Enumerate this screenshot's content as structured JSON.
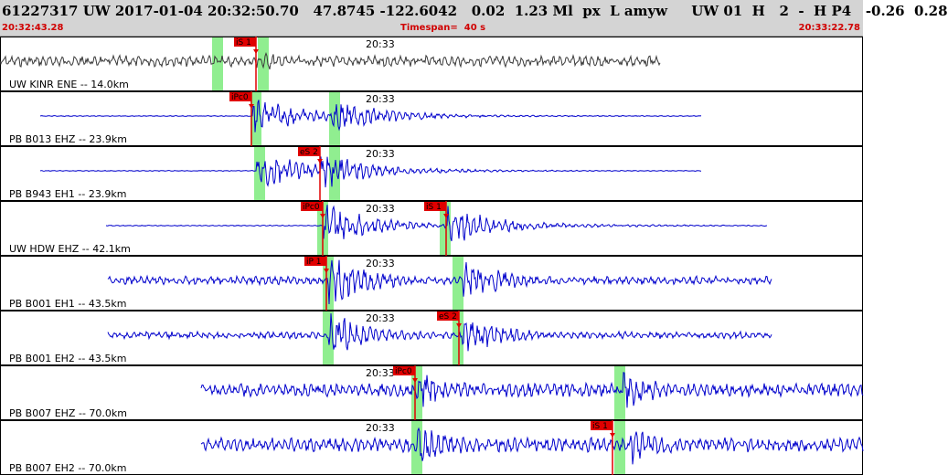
{
  "header": {
    "title": "61227317 UW 2017-01-04 20:32:50.70   47.8745 -122.6042   0.02  1.23 Ml  px  L amyw     UW 01  H   2  -  H P4   -0.26  0.28",
    "start_time": "20:32:43.28",
    "timespan": "Timespan=  40 s",
    "end_time": "20:33:22.78"
  },
  "colors": {
    "header_bg": "#d4d4d4",
    "trace_first": "#3a3a3a",
    "trace": "#0000cc",
    "pick_flag": "#e00000",
    "pick_window": "#90ee90",
    "time_text": "#d00000"
  },
  "panels": [
    {
      "channel": "UW KINR ENE -- 14.0km",
      "time_mark": "20:33",
      "color": "dark",
      "amp": 0.32,
      "noise": 0.55,
      "start": 0.0,
      "end": 0.765,
      "onsets": [
        0.297
      ],
      "windows": [
        0.252,
        0.305
      ],
      "picks": [
        {
          "label": "iS 1",
          "x": 0.297
        }
      ]
    },
    {
      "channel": "PB B013 EHZ -- 23.9km",
      "time_mark": "20:33",
      "color": "blue",
      "amp": 0.62,
      "noise": 0.02,
      "start": 0.047,
      "end": 0.813,
      "onsets": [
        0.293,
        0.385
      ],
      "windows": [
        0.297,
        0.388
      ],
      "picks": [
        {
          "label": "iPc0",
          "x": 0.291
        }
      ]
    },
    {
      "channel": "PB B943 EH1 -- 23.9km",
      "time_mark": "20:33",
      "color": "blue",
      "amp": 0.65,
      "noise": 0.02,
      "start": 0.047,
      "end": 0.813,
      "onsets": [
        0.297,
        0.371
      ],
      "windows": [
        0.301,
        0.388
      ],
      "picks": [
        {
          "label": "eS 2",
          "x": 0.371
        }
      ]
    },
    {
      "channel": "UW HDW EHZ -- 42.1km",
      "time_mark": "20:33",
      "color": "blue",
      "amp": 0.7,
      "noise": 0.02,
      "start": 0.123,
      "end": 0.889,
      "onsets": [
        0.375,
        0.519
      ],
      "windows": [
        0.374,
        0.516
      ],
      "picks": [
        {
          "label": "iPc0",
          "x": 0.374
        },
        {
          "label": "iS 1",
          "x": 0.517
        }
      ]
    },
    {
      "channel": "PB B001 EH1 -- 43.5km",
      "time_mark": "20:33",
      "color": "blue",
      "amp": 0.75,
      "noise": 0.18,
      "start": 0.125,
      "end": 0.894,
      "onsets": [
        0.38,
        0.535
      ],
      "windows": [
        0.38,
        0.531
      ],
      "picks": [
        {
          "label": "iP 1",
          "x": 0.378
        }
      ]
    },
    {
      "channel": "PB B001 EH2 -- 43.5km",
      "time_mark": "20:33",
      "color": "blue",
      "amp": 0.72,
      "noise": 0.16,
      "start": 0.125,
      "end": 0.894,
      "onsets": [
        0.38,
        0.533
      ],
      "windows": [
        0.38,
        0.531
      ],
      "picks": [
        {
          "label": "eS 2",
          "x": 0.532
        }
      ]
    },
    {
      "channel": "PB B007 EHZ -- 70.0km",
      "time_mark": "20:33",
      "color": "blue",
      "amp": 0.62,
      "noise": 0.35,
      "start": 0.233,
      "end": 1.0,
      "onsets": [
        0.483,
        0.72
      ],
      "windows": [
        0.483,
        0.718
      ],
      "picks": [
        {
          "label": "iPc0",
          "x": 0.481
        }
      ]
    },
    {
      "channel": "PB B007 EH2 -- 70.0km",
      "time_mark": "20:33",
      "color": "blue",
      "amp": 0.65,
      "noise": 0.35,
      "start": 0.233,
      "end": 1.0,
      "onsets": [
        0.483,
        0.728
      ],
      "windows": [
        0.483,
        0.718
      ],
      "picks": [
        {
          "label": "iS 1",
          "x": 0.71
        }
      ]
    }
  ]
}
